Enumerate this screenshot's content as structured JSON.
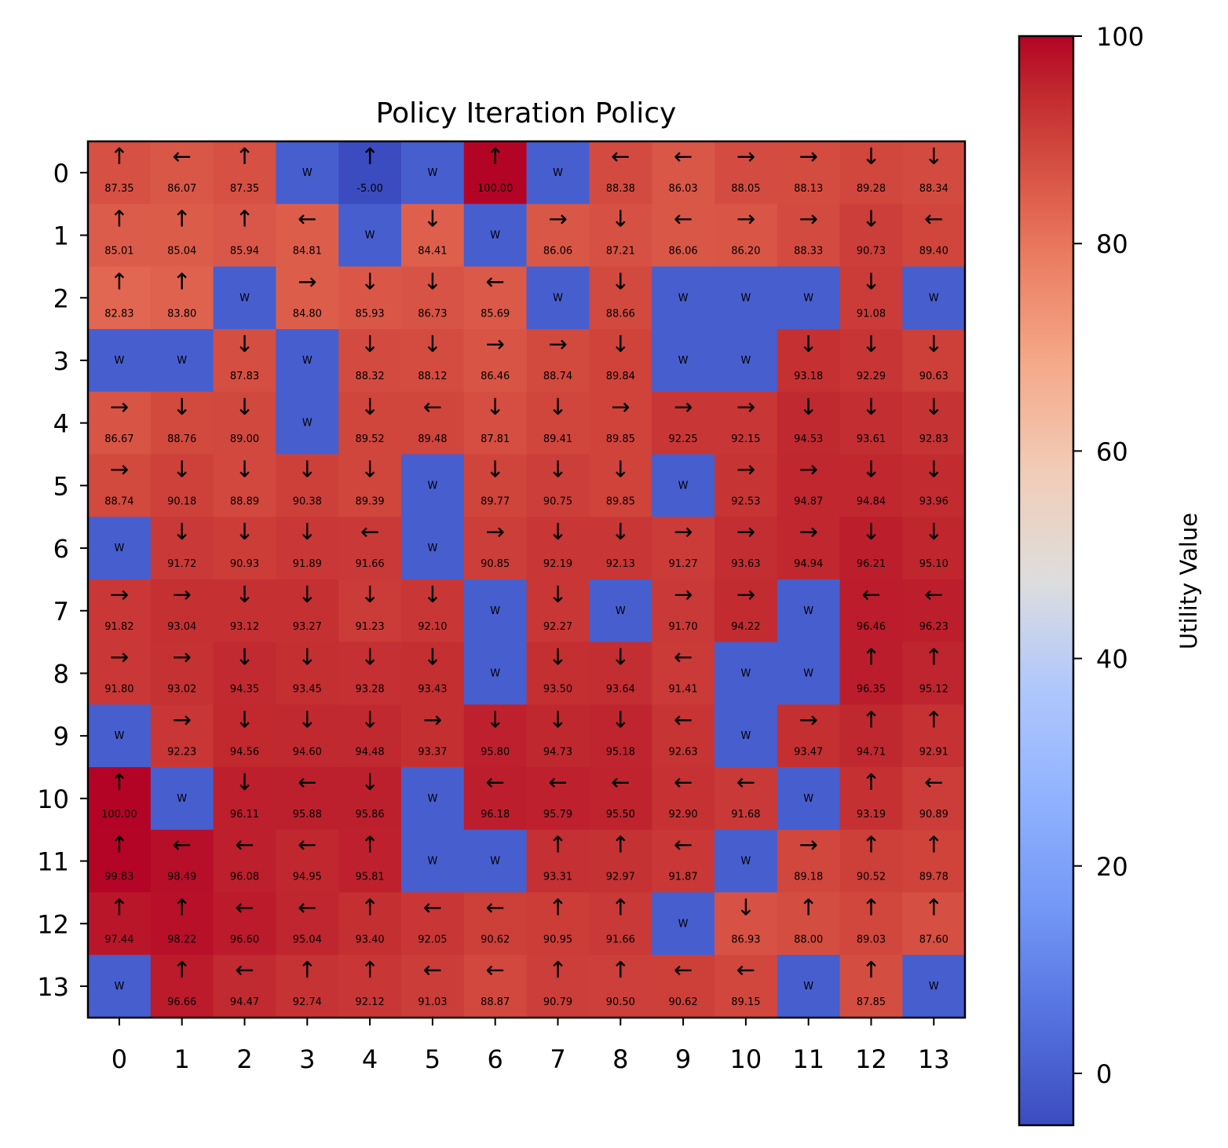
{
  "chart_data": {
    "type": "heatmap",
    "title": "Policy Iteration Policy",
    "xlabel": "",
    "ylabel": "",
    "x_ticks": [
      "0",
      "1",
      "2",
      "3",
      "4",
      "5",
      "6",
      "7",
      "8",
      "9",
      "10",
      "11",
      "12",
      "13"
    ],
    "y_ticks": [
      "0",
      "1",
      "2",
      "3",
      "4",
      "5",
      "6",
      "7",
      "8",
      "9",
      "10",
      "11",
      "12",
      "13"
    ],
    "wall_marker": "W",
    "colormap": "coolwarm",
    "colorbar": {
      "label": "Utility Value",
      "vmin": -5,
      "vmax": 100,
      "ticks": [
        0,
        20,
        40,
        60,
        80,
        100
      ],
      "tick_labels": [
        "0",
        "20",
        "40",
        "60",
        "80",
        "100"
      ]
    },
    "grid": false,
    "policy": [
      [
        "↑",
        "←",
        "↑",
        "W",
        "↑",
        "W",
        "↑",
        "W",
        "←",
        "←",
        "→",
        "→",
        "↓",
        "↓"
      ],
      [
        "↑",
        "↑",
        "↑",
        "←",
        "W",
        "↓",
        "W",
        "→",
        "↓",
        "←",
        "→",
        "→",
        "↓",
        "←"
      ],
      [
        "↑",
        "↑",
        "W",
        "→",
        "↓",
        "↓",
        "←",
        "W",
        "↓",
        "W",
        "W",
        "W",
        "↓",
        "W"
      ],
      [
        "W",
        "W",
        "↓",
        "W",
        "↓",
        "↓",
        "→",
        "→",
        "↓",
        "W",
        "W",
        "↓",
        "↓",
        "↓"
      ],
      [
        "→",
        "↓",
        "↓",
        "W",
        "↓",
        "←",
        "↓",
        "↓",
        "→",
        "→",
        "→",
        "↓",
        "↓",
        "↓"
      ],
      [
        "→",
        "↓",
        "↓",
        "↓",
        "↓",
        "W",
        "↓",
        "↓",
        "↓",
        "W",
        "→",
        "→",
        "↓",
        "↓"
      ],
      [
        "W",
        "↓",
        "↓",
        "↓",
        "←",
        "W",
        "→",
        "↓",
        "↓",
        "→",
        "→",
        "→",
        "↓",
        "↓"
      ],
      [
        "→",
        "→",
        "↓",
        "↓",
        "↓",
        "↓",
        "W",
        "↓",
        "W",
        "→",
        "→",
        "W",
        "←",
        "←"
      ],
      [
        "→",
        "→",
        "↓",
        "↓",
        "↓",
        "↓",
        "W",
        "↓",
        "↓",
        "←",
        "W",
        "W",
        "↑",
        "↑"
      ],
      [
        "W",
        "→",
        "↓",
        "↓",
        "↓",
        "→",
        "↓",
        "↓",
        "↓",
        "←",
        "W",
        "→",
        "↑",
        "↑"
      ],
      [
        "↑",
        "W",
        "↓",
        "←",
        "↓",
        "W",
        "←",
        "←",
        "←",
        "←",
        "←",
        "W",
        "↑",
        "←"
      ],
      [
        "↑",
        "←",
        "←",
        "←",
        "↑",
        "W",
        "W",
        "↑",
        "↑",
        "←",
        "W",
        "→",
        "↑",
        "↑"
      ],
      [
        "↑",
        "↑",
        "←",
        "←",
        "↑",
        "←",
        "←",
        "↑",
        "↑",
        "W",
        "↓",
        "↑",
        "↑",
        "↑"
      ],
      [
        "W",
        "↑",
        "←",
        "↑",
        "↑",
        "←",
        "←",
        "↑",
        "↑",
        "←",
        "←",
        "W",
        "↑",
        "W"
      ]
    ],
    "values": [
      [
        "87.35",
        "86.07",
        "87.35",
        null,
        "-5.00",
        null,
        "100.00",
        null,
        "88.38",
        "86.03",
        "88.05",
        "88.13",
        "89.28",
        "88.34"
      ],
      [
        "85.01",
        "85.04",
        "85.94",
        "84.81",
        null,
        "84.41",
        null,
        "86.06",
        "87.21",
        "86.06",
        "86.20",
        "88.33",
        "90.73",
        "89.40"
      ],
      [
        "82.83",
        "83.80",
        null,
        "84.80",
        "85.93",
        "86.73",
        "85.69",
        null,
        "88.66",
        null,
        null,
        null,
        "91.08",
        null
      ],
      [
        null,
        null,
        "87.83",
        null,
        "88.32",
        "88.12",
        "86.46",
        "88.74",
        "89.84",
        null,
        null,
        "93.18",
        "92.29",
        "90.63"
      ],
      [
        "86.67",
        "88.76",
        "89.00",
        null,
        "89.52",
        "89.48",
        "87.81",
        "89.41",
        "89.85",
        "92.25",
        "92.15",
        "94.53",
        "93.61",
        "92.83"
      ],
      [
        "88.74",
        "90.18",
        "88.89",
        "90.38",
        "89.39",
        null,
        "89.77",
        "90.75",
        "89.85",
        null,
        "92.53",
        "94.87",
        "94.84",
        "93.96"
      ],
      [
        null,
        "91.72",
        "90.93",
        "91.89",
        "91.66",
        null,
        "90.85",
        "92.19",
        "92.13",
        "91.27",
        "93.63",
        "94.94",
        "96.21",
        "95.10"
      ],
      [
        "91.82",
        "93.04",
        "93.12",
        "93.27",
        "91.23",
        "92.10",
        null,
        "92.27",
        null,
        "91.70",
        "94.22",
        null,
        "96.46",
        "96.23"
      ],
      [
        "91.80",
        "93.02",
        "94.35",
        "93.45",
        "93.28",
        "93.43",
        null,
        "93.50",
        "93.64",
        "91.41",
        null,
        null,
        "96.35",
        "95.12"
      ],
      [
        null,
        "92.23",
        "94.56",
        "94.60",
        "94.48",
        "93.37",
        "95.80",
        "94.73",
        "95.18",
        "92.63",
        null,
        "93.47",
        "94.71",
        "92.91"
      ],
      [
        "100.00",
        null,
        "96.11",
        "95.88",
        "95.86",
        null,
        "96.18",
        "95.79",
        "95.50",
        "92.90",
        "91.68",
        null,
        "93.19",
        "90.89"
      ],
      [
        "99.83",
        "98.49",
        "96.08",
        "94.95",
        "95.81",
        null,
        null,
        "93.31",
        "92.97",
        "91.87",
        null,
        "89.18",
        "90.52",
        "89.78"
      ],
      [
        "97.44",
        "98.22",
        "96.60",
        "95.04",
        "93.40",
        "92.05",
        "90.62",
        "90.95",
        "91.66",
        null,
        "86.93",
        "88.00",
        "89.03",
        "87.60"
      ],
      [
        null,
        "96.66",
        "94.47",
        "92.74",
        "92.12",
        "91.03",
        "88.87",
        "90.79",
        "90.50",
        "90.62",
        "89.15",
        null,
        "87.85",
        null
      ]
    ]
  }
}
